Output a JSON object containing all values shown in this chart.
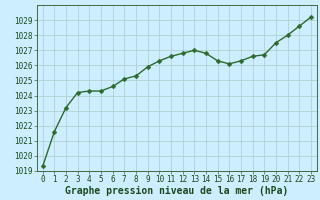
{
  "x": [
    0,
    1,
    2,
    3,
    4,
    5,
    6,
    7,
    8,
    9,
    10,
    11,
    12,
    13,
    14,
    15,
    16,
    17,
    18,
    19,
    20,
    21,
    22,
    23
  ],
  "y": [
    1019.3,
    1021.6,
    1023.2,
    1024.2,
    1024.3,
    1024.3,
    1024.6,
    1025.1,
    1025.3,
    1025.9,
    1026.3,
    1026.6,
    1026.8,
    1027.0,
    1026.8,
    1026.3,
    1026.1,
    1026.3,
    1026.6,
    1026.7,
    1027.5,
    1028.0,
    1028.6,
    1029.2
  ],
  "line_color": "#2d6a2d",
  "marker": "D",
  "marker_size": 2.5,
  "line_width": 1.0,
  "bg_color": "#cceeff",
  "grid_color": "#aacccc",
  "xlabel": "Graphe pression niveau de la mer (hPa)",
  "xlabel_fontsize": 7,
  "xlabel_color": "#1a4a1a",
  "tick_label_color": "#1a4a1a",
  "tick_fontsize": 5.5,
  "ylim": [
    1019,
    1030
  ],
  "xlim": [
    -0.5,
    23.5
  ],
  "yticks": [
    1019,
    1020,
    1021,
    1022,
    1023,
    1024,
    1025,
    1026,
    1027,
    1028,
    1029
  ],
  "xticks": [
    0,
    1,
    2,
    3,
    4,
    5,
    6,
    7,
    8,
    9,
    10,
    11,
    12,
    13,
    14,
    15,
    16,
    17,
    18,
    19,
    20,
    21,
    22,
    23
  ]
}
